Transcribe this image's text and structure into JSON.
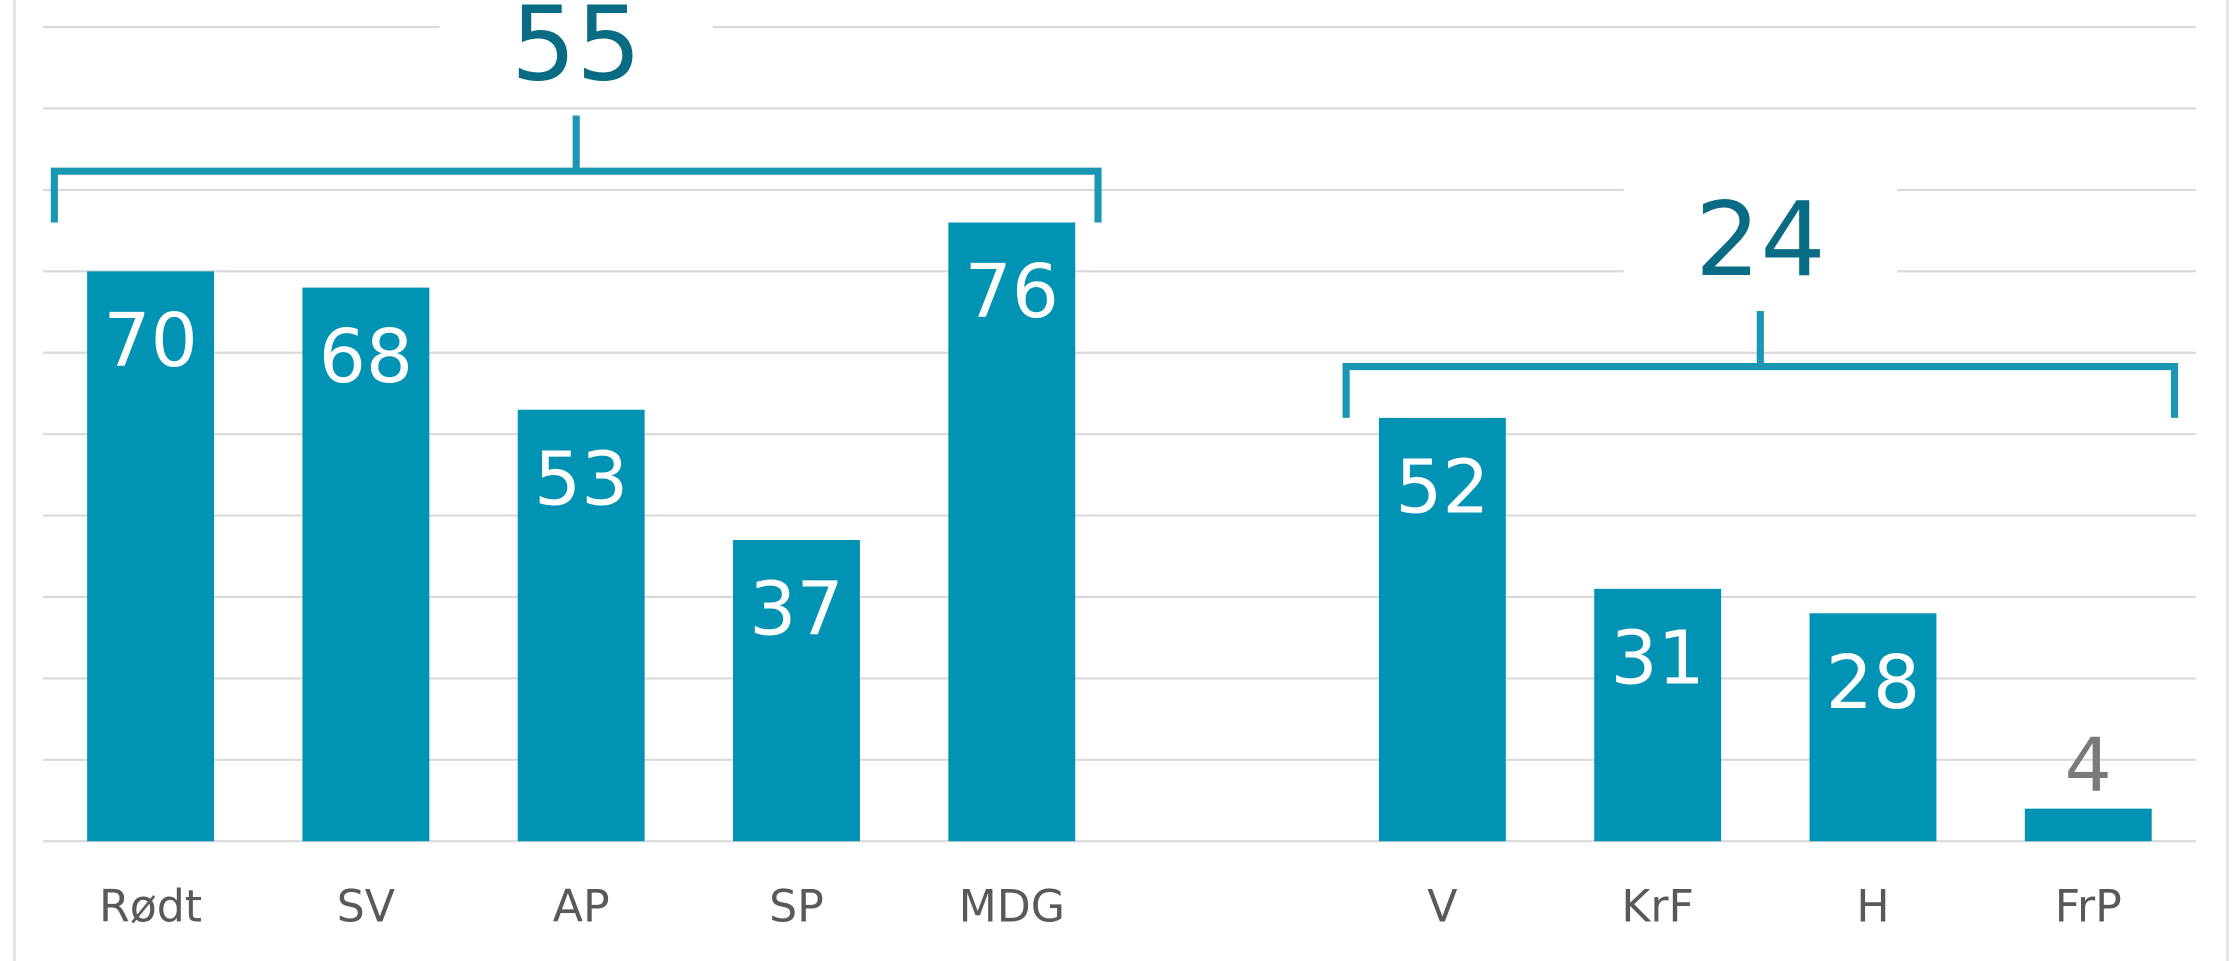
{
  "chart_data": {
    "type": "bar",
    "categories": [
      "Rødt",
      "SV",
      "AP",
      "SP",
      "MDG",
      null,
      "V",
      "KrF",
      "H",
      "FrP"
    ],
    "values": [
      70,
      68,
      53,
      37,
      76,
      null,
      52,
      31,
      28,
      4
    ],
    "color": "#0093b3",
    "ylim": [
      0,
      100
    ],
    "yticks": [
      0,
      10,
      20,
      30,
      40,
      50,
      60,
      70,
      80,
      90,
      100
    ],
    "grid": true,
    "annotations": [
      "55",
      "24"
    ]
  }
}
